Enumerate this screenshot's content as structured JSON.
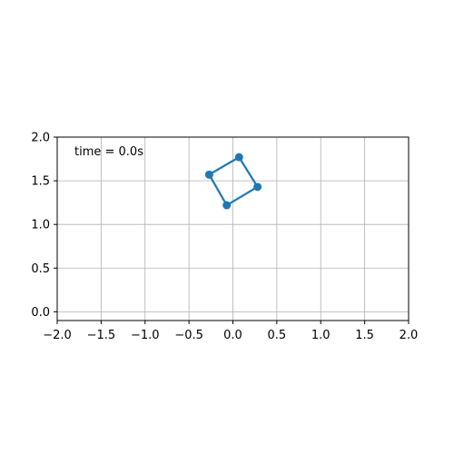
{
  "chart_data": {
    "type": "line",
    "title": "",
    "xlabel": "",
    "ylabel": "",
    "xlim": [
      -2.0,
      2.0
    ],
    "ylim": [
      -0.1,
      2.0
    ],
    "grid": true,
    "x_ticks": [
      -2.0,
      -1.5,
      -1.0,
      -0.5,
      0.0,
      0.5,
      1.0,
      1.5,
      2.0
    ],
    "x_tick_labels": [
      "−2.0",
      "−1.5",
      "−1.0",
      "−0.5",
      "0.0",
      "0.5",
      "1.0",
      "1.5",
      "2.0"
    ],
    "y_ticks": [
      0.0,
      0.5,
      1.0,
      1.5,
      2.0
    ],
    "y_tick_labels": [
      "0.0",
      "0.5",
      "1.0",
      "1.5",
      "2.0"
    ],
    "series": [
      {
        "color": "#1f77b4",
        "marker": "circle",
        "closed": true,
        "points": [
          {
            "x": 0.07,
            "y": 1.77
          },
          {
            "x": 0.28,
            "y": 1.43
          },
          {
            "x": -0.07,
            "y": 1.22
          },
          {
            "x": -0.27,
            "y": 1.57
          }
        ]
      }
    ],
    "annotation": "time = 0.0s"
  }
}
